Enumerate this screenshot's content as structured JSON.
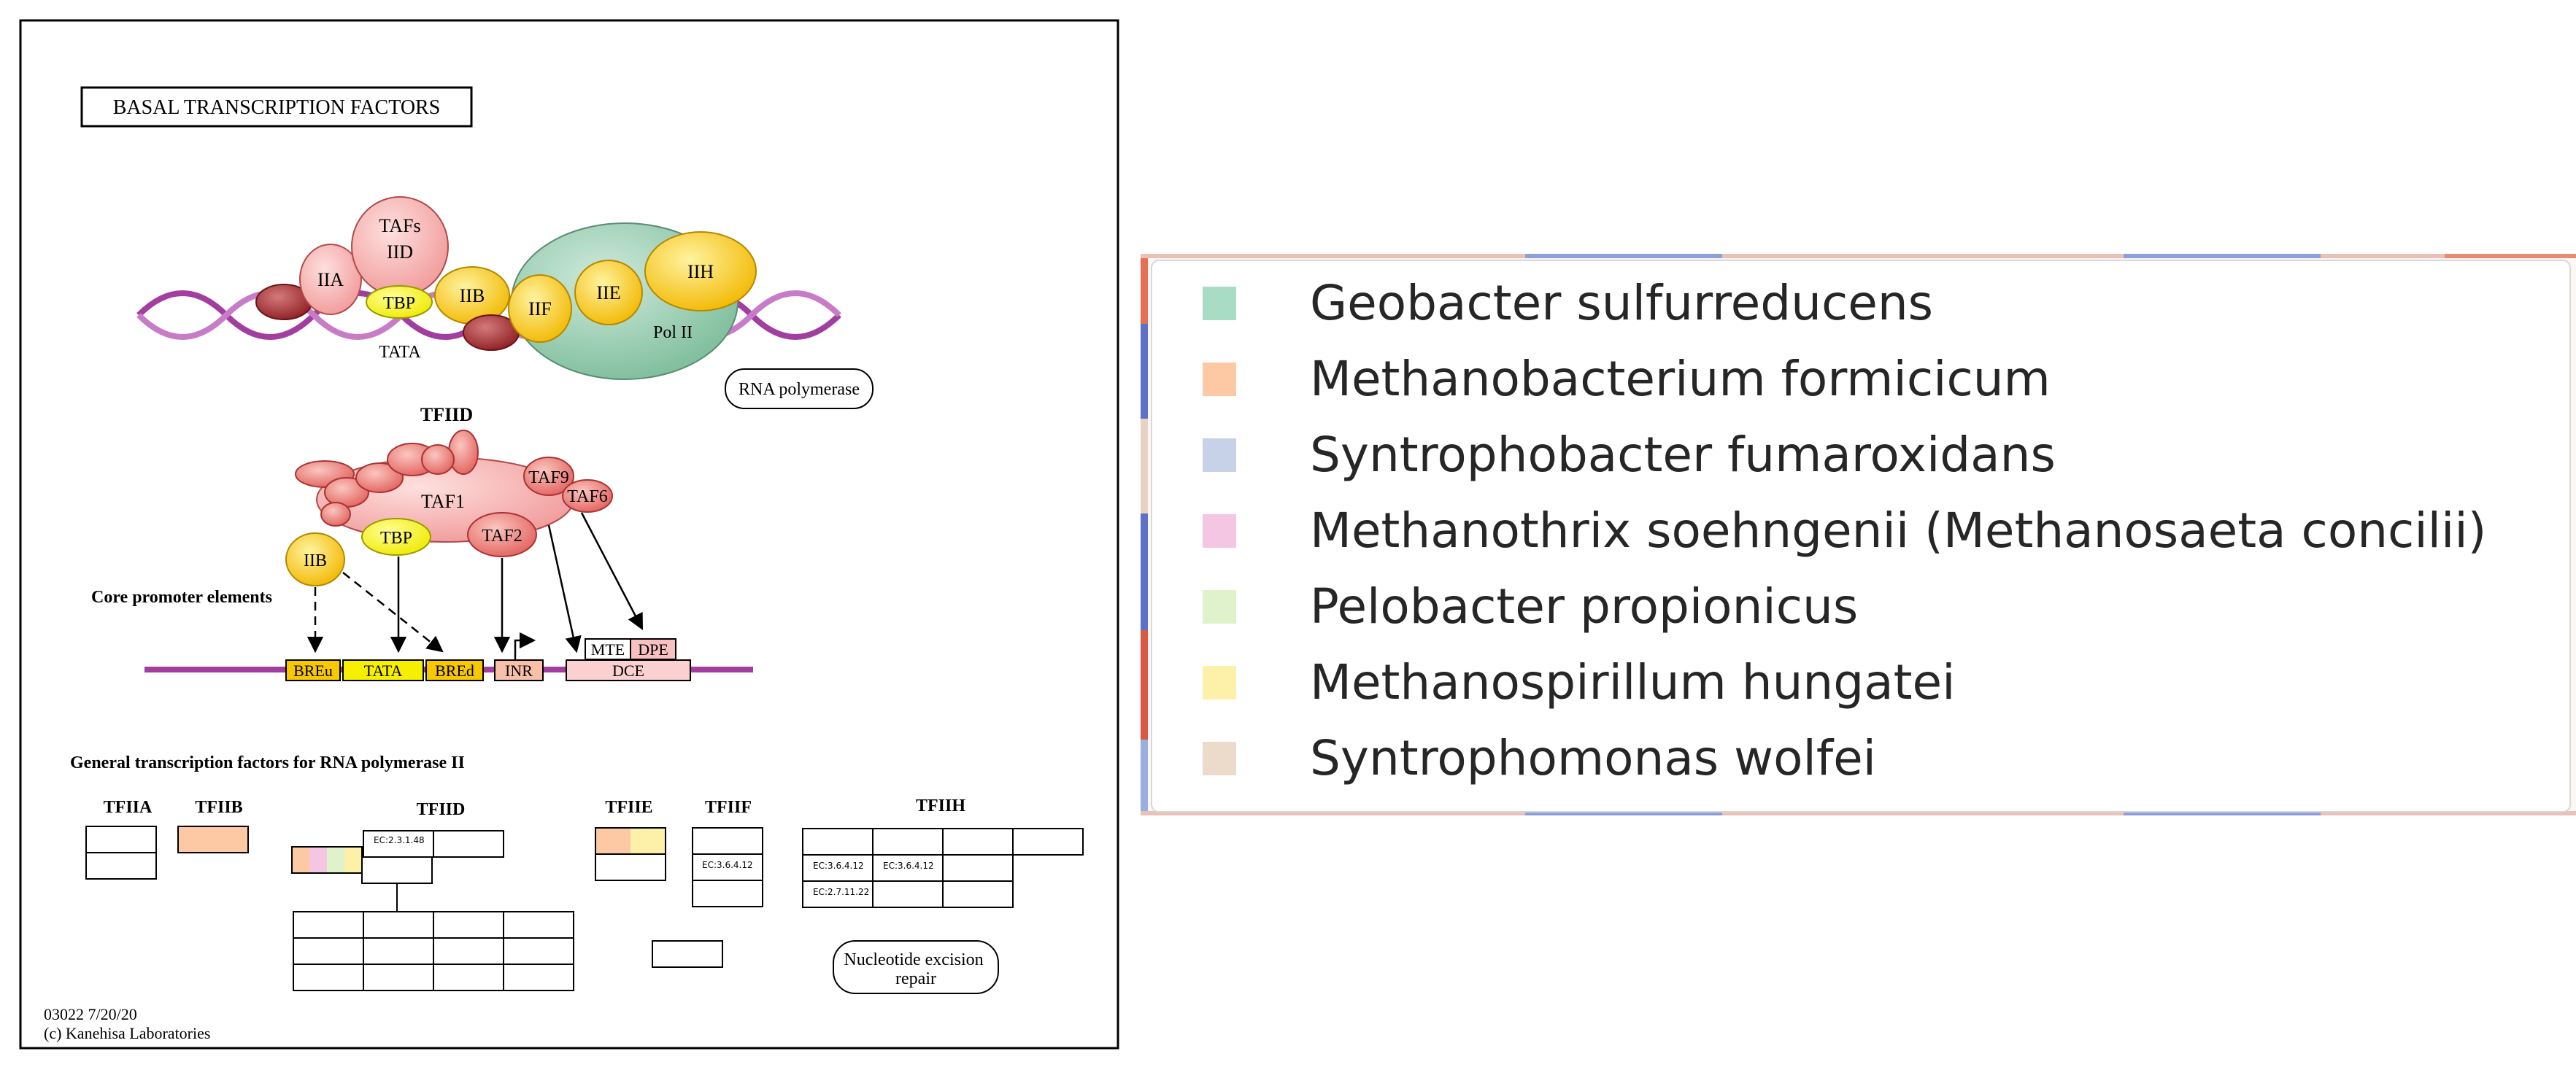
{
  "map": {
    "title": "BASAL TRANSCRIPTION FACTORS",
    "footer_id": "03022 7/20/20",
    "footer_copyright": "(c) Kanehisa Laboratories"
  },
  "complex": {
    "tafs": "TAFs",
    "iid": "IID",
    "iia": "IIA",
    "tbp": "TBP",
    "iib": "IIB",
    "iif": "IIF",
    "iie": "IIE",
    "iih": "IIH",
    "pol2": "Pol II",
    "tata": "TATA",
    "rna_polymerase": "RNA polymerase"
  },
  "tfiid_detail": {
    "title": "TFIID",
    "taf1": "TAF1",
    "taf9": "TAF9",
    "taf6": "TAF6",
    "taf2": "TAF2",
    "tbp": "TBP",
    "iib": "IIB"
  },
  "promoter": {
    "label": "Core promoter elements",
    "breu": "BREu",
    "tata": "TATA",
    "bred": "BREd",
    "inr": "INR",
    "mte": "MTE",
    "dpe": "DPE",
    "dce": "DCE"
  },
  "gtf": {
    "heading": "General transcription factors for RNA polymerase II",
    "tfiia": "TFIIA",
    "tfiib": "TFIIB",
    "tfiid": "TFIID",
    "tfiie": "TFIIE",
    "tfiif": "TFIIF",
    "tfiih": "TFIIH",
    "ec_tfiid": "EC:2.3.1.48",
    "ec_tfiif": "EC:3.6.4.12",
    "ec_tfiih_1": "EC:3.6.4.12",
    "ec_tfiih_2": "EC:3.6.4.12",
    "ec_tfiih_3": "EC:2.7.11.22",
    "ner": "Nucleotide excision repair"
  },
  "legend": {
    "items": [
      {
        "label": "Geobacter sulfurreducens",
        "color": "#a8dcc4"
      },
      {
        "label": "Methanobacterium formicicum",
        "color": "#fcc9a4"
      },
      {
        "label": "Syntrophobacter fumaroxidans",
        "color": "#c7d2e8"
      },
      {
        "label": "Methanothrix soehngenii (Methanosaeta concilii)",
        "color": "#f4c6e4"
      },
      {
        "label": "Pelobacter propionicus",
        "color": "#dff2cb"
      },
      {
        "label": "Methanospirillum hungatei",
        "color": "#fdf0a8"
      },
      {
        "label": "Syntrophomonas wolfei",
        "color": "#ecdacb"
      }
    ]
  }
}
